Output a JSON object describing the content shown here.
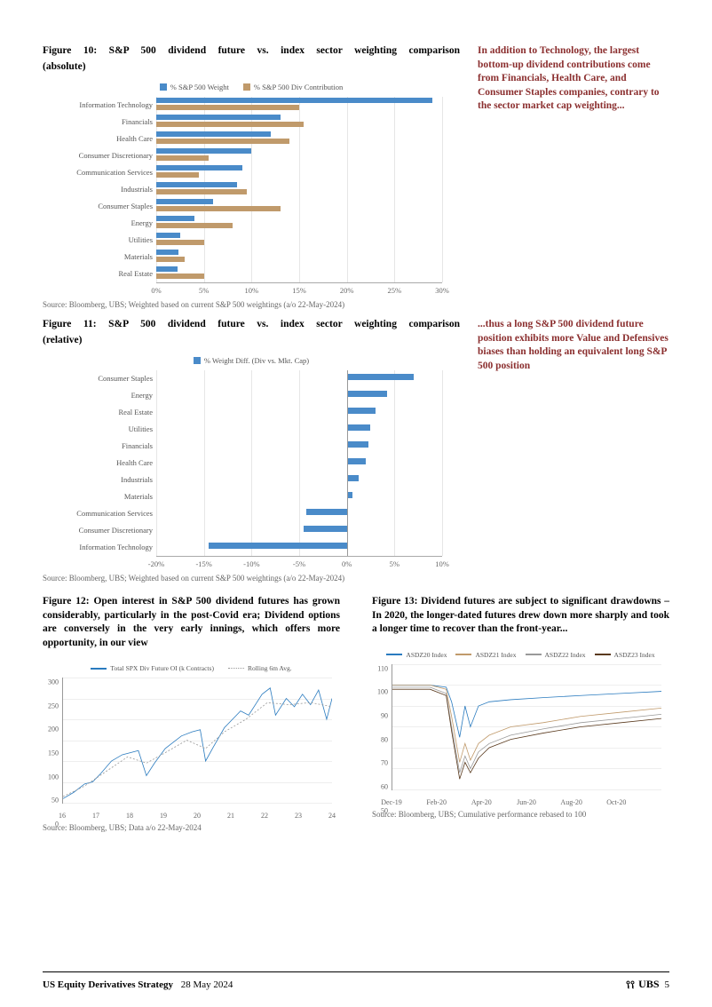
{
  "colors": {
    "blue": "#4a8bc9",
    "tan": "#c09a6b",
    "blue2": "#2a7bbf",
    "gray_line": "#999999",
    "brown_line": "#8a5a3b",
    "sidenote": "#8b2f2f"
  },
  "fig10": {
    "title_line1": "Figure 10: S&P 500 dividend future vs. index sector weighting comparison",
    "title_line2": "(absolute)",
    "legend_a": "% S&P 500 Weight",
    "legend_b": "% S&P 500 Div Contribution",
    "xlim": [
      0,
      30
    ],
    "xtick_step": 5,
    "rows": [
      {
        "label": "Information Technology",
        "a": 29.0,
        "b": 15.0
      },
      {
        "label": "Financials",
        "a": 13.0,
        "b": 15.5
      },
      {
        "label": "Health Care",
        "a": 12.0,
        "b": 14.0
      },
      {
        "label": "Consumer Discretionary",
        "a": 10.0,
        "b": 5.5
      },
      {
        "label": "Communication Services",
        "a": 9.0,
        "b": 4.5
      },
      {
        "label": "Industrials",
        "a": 8.5,
        "b": 9.5
      },
      {
        "label": "Consumer Staples",
        "a": 6.0,
        "b": 13.0
      },
      {
        "label": "Energy",
        "a": 4.0,
        "b": 8.0
      },
      {
        "label": "Utilities",
        "a": 2.5,
        "b": 5.0
      },
      {
        "label": "Materials",
        "a": 2.3,
        "b": 3.0
      },
      {
        "label": "Real Estate",
        "a": 2.2,
        "b": 5.0
      }
    ],
    "source": "Source: Bloomberg, UBS; Weighted based on current S&P 500 weightings (a/o 22-May-2024)"
  },
  "sidenote10": "In addition to Technology, the largest bottom-up dividend contributions come from Financials, Health Care, and Consumer Staples companies, contrary to the sector market cap weighting...",
  "fig11": {
    "title_line1": "Figure 11: S&P 500 dividend future vs. index sector weighting comparison",
    "title_line2": "(relative)",
    "legend": "% Weight Diff. (Div vs. Mkt. Cap)",
    "xlim": [
      -20,
      10
    ],
    "xtick_step": 5,
    "rows": [
      {
        "label": "Consumer Staples",
        "v": 7.0
      },
      {
        "label": "Energy",
        "v": 4.2
      },
      {
        "label": "Real Estate",
        "v": 3.0
      },
      {
        "label": "Utilities",
        "v": 2.5
      },
      {
        "label": "Financials",
        "v": 2.3
      },
      {
        "label": "Health Care",
        "v": 2.0
      },
      {
        "label": "Industrials",
        "v": 1.2
      },
      {
        "label": "Materials",
        "v": 0.6
      },
      {
        "label": "Communication Services",
        "v": -4.3
      },
      {
        "label": "Consumer Discretionary",
        "v": -4.5
      },
      {
        "label": "Information Technology",
        "v": -14.5
      }
    ],
    "source": "Source: Bloomberg, UBS; Weighted based on current S&P 500 weightings (a/o 22-May-2024)"
  },
  "sidenote11": "...thus a long S&P 500 dividend future position exhibits more Value and Defensives biases than holding an equivalent long S&P 500 position",
  "fig12": {
    "title": "Figure 12: Open interest in S&P 500 dividend futures has grown considerably, particularly in the post-Covid era; Dividend options are conversely in the very early innings, which offers more opportunity, in our view",
    "legend_a": "Total SPX Div Future OI (k Contracts)",
    "legend_b": "Rolling 6m Avg.",
    "ylim": [
      0,
      300
    ],
    "ytick_step": 50,
    "x_labels": [
      "16",
      "17",
      "18",
      "19",
      "20",
      "21",
      "22",
      "23",
      "24"
    ],
    "series_a": [
      [
        0,
        10
      ],
      [
        4,
        25
      ],
      [
        8,
        45
      ],
      [
        11,
        50
      ],
      [
        14,
        70
      ],
      [
        18,
        100
      ],
      [
        22,
        115
      ],
      [
        25,
        120
      ],
      [
        28,
        125
      ],
      [
        31,
        65
      ],
      [
        34,
        95
      ],
      [
        38,
        130
      ],
      [
        40,
        140
      ],
      [
        44,
        160
      ],
      [
        48,
        170
      ],
      [
        51,
        175
      ],
      [
        53,
        100
      ],
      [
        56,
        135
      ],
      [
        60,
        180
      ],
      [
        63,
        200
      ],
      [
        66,
        220
      ],
      [
        69,
        210
      ],
      [
        72,
        240
      ],
      [
        74,
        260
      ],
      [
        77,
        275
      ],
      [
        79,
        210
      ],
      [
        83,
        250
      ],
      [
        86,
        230
      ],
      [
        89,
        260
      ],
      [
        92,
        235
      ],
      [
        95,
        270
      ],
      [
        98,
        200
      ],
      [
        100,
        250
      ]
    ],
    "series_b": [
      [
        0,
        15
      ],
      [
        8,
        40
      ],
      [
        16,
        75
      ],
      [
        24,
        110
      ],
      [
        31,
        95
      ],
      [
        38,
        120
      ],
      [
        46,
        150
      ],
      [
        53,
        130
      ],
      [
        60,
        170
      ],
      [
        68,
        200
      ],
      [
        76,
        240
      ],
      [
        84,
        235
      ],
      [
        92,
        240
      ],
      [
        100,
        230
      ]
    ],
    "source": "Source: Bloomberg, UBS; Data a/o 22-May-2024"
  },
  "fig13": {
    "title": "Figure 13: Dividend futures are subject to significant drawdowns – In 2020, the longer-dated futures drew down more sharply and took a longer time to recover than the front-year...",
    "legend": [
      "ASDZ20 Index",
      "ASDZ21 Index",
      "ASDZ22 Index",
      "ASDZ23 Index"
    ],
    "legend_colors": [
      "#2a7bbf",
      "#c09a6b",
      "#999999",
      "#5a3a1e"
    ],
    "ylim": [
      50,
      110
    ],
    "ytick_step": 10,
    "x_labels": [
      "Dec-19",
      "Feb-20",
      "Apr-20",
      "Jun-20",
      "Aug-20",
      "Oct-20",
      ""
    ],
    "series": [
      [
        [
          0,
          100
        ],
        [
          14,
          100
        ],
        [
          20,
          99
        ],
        [
          22,
          92
        ],
        [
          25,
          75
        ],
        [
          27,
          90
        ],
        [
          29,
          80
        ],
        [
          32,
          90
        ],
        [
          36,
          92
        ],
        [
          44,
          93
        ],
        [
          56,
          94
        ],
        [
          70,
          95
        ],
        [
          85,
          96
        ],
        [
          100,
          97
        ]
      ],
      [
        [
          0,
          100
        ],
        [
          14,
          100
        ],
        [
          20,
          98
        ],
        [
          22,
          85
        ],
        [
          25,
          63
        ],
        [
          27,
          72
        ],
        [
          29,
          64
        ],
        [
          32,
          72
        ],
        [
          36,
          76
        ],
        [
          44,
          80
        ],
        [
          56,
          82
        ],
        [
          70,
          85
        ],
        [
          85,
          87
        ],
        [
          100,
          89
        ]
      ],
      [
        [
          0,
          99
        ],
        [
          14,
          99
        ],
        [
          20,
          96
        ],
        [
          22,
          80
        ],
        [
          25,
          58
        ],
        [
          27,
          66
        ],
        [
          29,
          60
        ],
        [
          32,
          68
        ],
        [
          36,
          72
        ],
        [
          44,
          76
        ],
        [
          56,
          79
        ],
        [
          70,
          82
        ],
        [
          85,
          84
        ],
        [
          100,
          86
        ]
      ],
      [
        [
          0,
          98
        ],
        [
          14,
          98
        ],
        [
          20,
          95
        ],
        [
          22,
          78
        ],
        [
          25,
          55
        ],
        [
          27,
          63
        ],
        [
          29,
          58
        ],
        [
          32,
          65
        ],
        [
          36,
          70
        ],
        [
          44,
          74
        ],
        [
          56,
          77
        ],
        [
          70,
          80
        ],
        [
          85,
          82
        ],
        [
          100,
          84
        ]
      ]
    ],
    "source": "Source: Bloomberg, UBS; Cumulative performance rebased to 100"
  },
  "footer": {
    "title": "US Equity Derivatives Strategy",
    "date": "28 May 2024",
    "brand": "UBS",
    "page": "5"
  }
}
